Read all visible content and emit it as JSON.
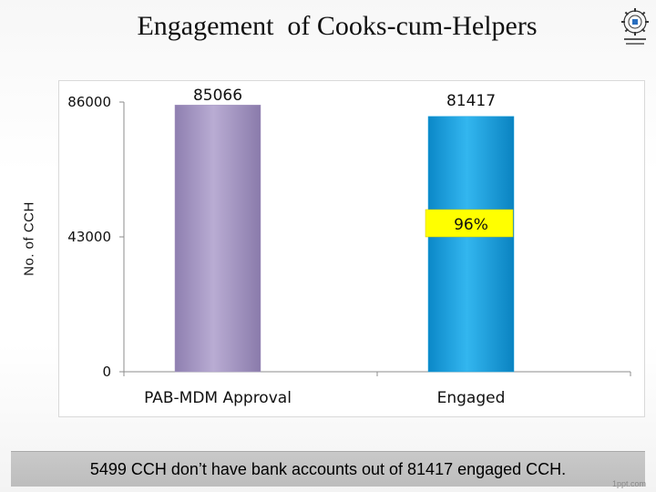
{
  "slide": {
    "title": "Engagement  of Cooks-cum-Helpers",
    "footer_note": "5499 CCH don’t have bank accounts out of 81417 engaged CCH.",
    "watermark": "1ppt.com"
  },
  "chart_data": {
    "type": "bar",
    "title": "Engagement  of Cooks-cum-Helpers",
    "ylabel": "No. of CCH",
    "xlabel": "",
    "ylim": [
      0,
      86000
    ],
    "yticks": [
      "0",
      "43000",
      "86000"
    ],
    "yticks_values": [
      0,
      43000,
      86000
    ],
    "categories": [
      "PAB-MDM Approval",
      "Engaged"
    ],
    "values": [
      85066,
      81417
    ],
    "value_labels": [
      "85066",
      "81417"
    ],
    "bar_colors": [
      "#a99bc4",
      "#1aa3e0"
    ],
    "annotation": {
      "text": "96%",
      "category_index": 1,
      "y_value": 43000,
      "background": "#ffff00"
    },
    "grid": false
  }
}
